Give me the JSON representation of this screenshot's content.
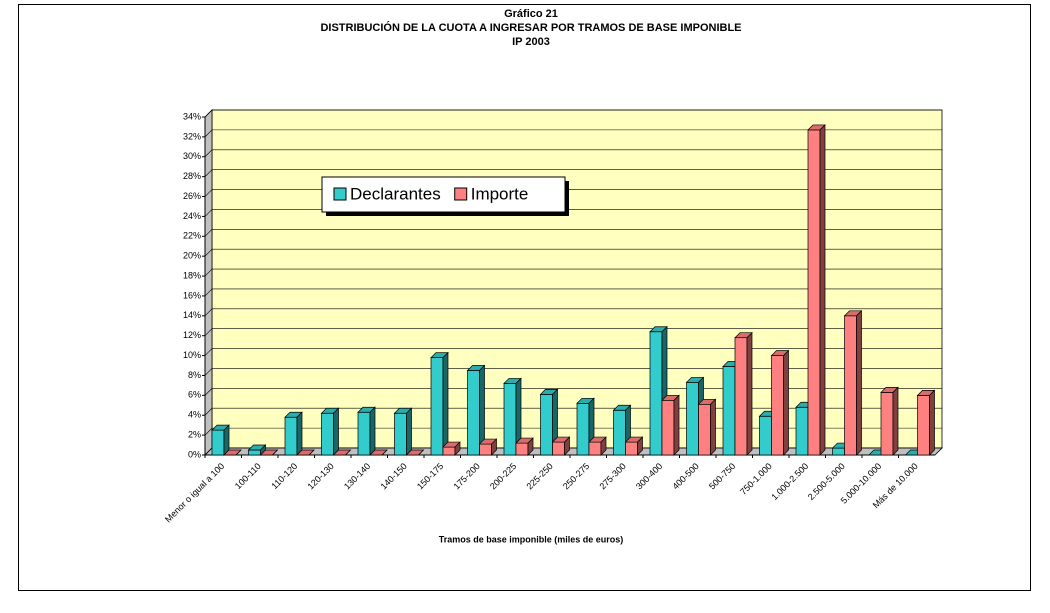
{
  "chart_data": {
    "type": "bar3d",
    "title": [
      "Gráfico 21",
      "DISTRIBUCIÓN DE LA CUOTA A INGRESAR POR TRAMOS DE BASE IMPONIBLE",
      "IP 2003"
    ],
    "xlabel": "Tramos de base imponible (miles de euros)",
    "categories": [
      "Menor o igual a 100",
      "100-110",
      "110-120",
      "120-130",
      "130-140",
      "140-150",
      "150-175",
      "175-200",
      "200-225",
      "225-250",
      "250-275",
      "275-300",
      "300-400",
      "400-500",
      "500-750",
      "750-1.000",
      "1.000-2.500",
      "2.500-5.000",
      "5.000-10.000",
      "Más de 10.000"
    ],
    "series": [
      {
        "name": "Declarantes",
        "color": "#33cccc",
        "values": [
          2.5,
          0.5,
          3.8,
          4.2,
          4.3,
          4.2,
          9.8,
          8.5,
          7.2,
          6.1,
          5.2,
          4.5,
          12.4,
          7.3,
          8.9,
          3.9,
          4.8,
          0.7,
          0.0,
          0.0
        ]
      },
      {
        "name": "Importe",
        "color": "#ff8080",
        "values": [
          0.0,
          0.0,
          0.0,
          0.0,
          0.0,
          0.0,
          0.8,
          1.1,
          1.2,
          1.3,
          1.3,
          1.3,
          5.5,
          5.1,
          11.8,
          10.0,
          32.7,
          14.0,
          6.3,
          6.0
        ]
      }
    ],
    "ylim": [
      0,
      34
    ],
    "yticks": [
      {
        "value": 0,
        "label": "0%"
      },
      {
        "value": 2,
        "label": "2%"
      },
      {
        "value": 4,
        "label": "4%"
      },
      {
        "value": 6,
        "label": "6%"
      },
      {
        "value": 8,
        "label": "8%"
      },
      {
        "value": 10,
        "label": "10%"
      },
      {
        "value": 12,
        "label": "12%"
      },
      {
        "value": 14,
        "label": "14%"
      },
      {
        "value": 16,
        "label": "16%"
      },
      {
        "value": 18,
        "label": "18%"
      },
      {
        "value": 20,
        "label": "20%"
      },
      {
        "value": 22,
        "label": "22%"
      },
      {
        "value": 24,
        "label": "24%"
      },
      {
        "value": 26,
        "label": "26%"
      },
      {
        "value": 28,
        "label": "28%"
      },
      {
        "value": 30,
        "label": "30%"
      },
      {
        "value": 32,
        "label": "32%"
      },
      {
        "value": 34,
        "label": "34%"
      }
    ],
    "grid": true
  }
}
